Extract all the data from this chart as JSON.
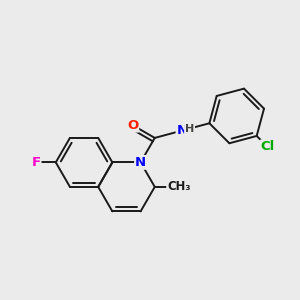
{
  "background_color": "#EBEBEB",
  "bond_color": "#1a1a1a",
  "atom_colors": {
    "F": "#FF00CC",
    "N": "#0000FF",
    "O": "#FF2200",
    "Cl": "#00AA00",
    "H": "#444444",
    "C": "#1a1a1a"
  },
  "bond_width": 1.4,
  "font_size": 9.5,
  "figsize": [
    3.0,
    3.0
  ],
  "dpi": 100
}
